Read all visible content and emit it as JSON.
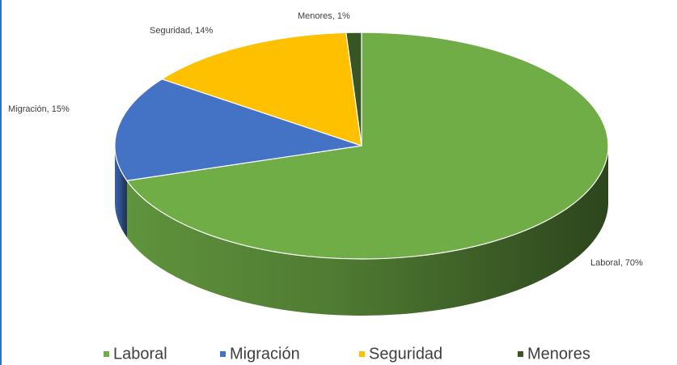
{
  "chart_data": {
    "type": "pie",
    "categories": [
      "Laboral",
      "Migración",
      "Seguridad",
      "Menores"
    ],
    "values": [
      70,
      15,
      14,
      1
    ],
    "value_labels": [
      "Laboral, 70%",
      "Migración, 15%",
      "Seguridad, 14%",
      "Menores, 1%"
    ],
    "colors": [
      "#70ad47",
      "#4472c4",
      "#ffc000",
      "#375623"
    ],
    "legend": "bottom"
  }
}
